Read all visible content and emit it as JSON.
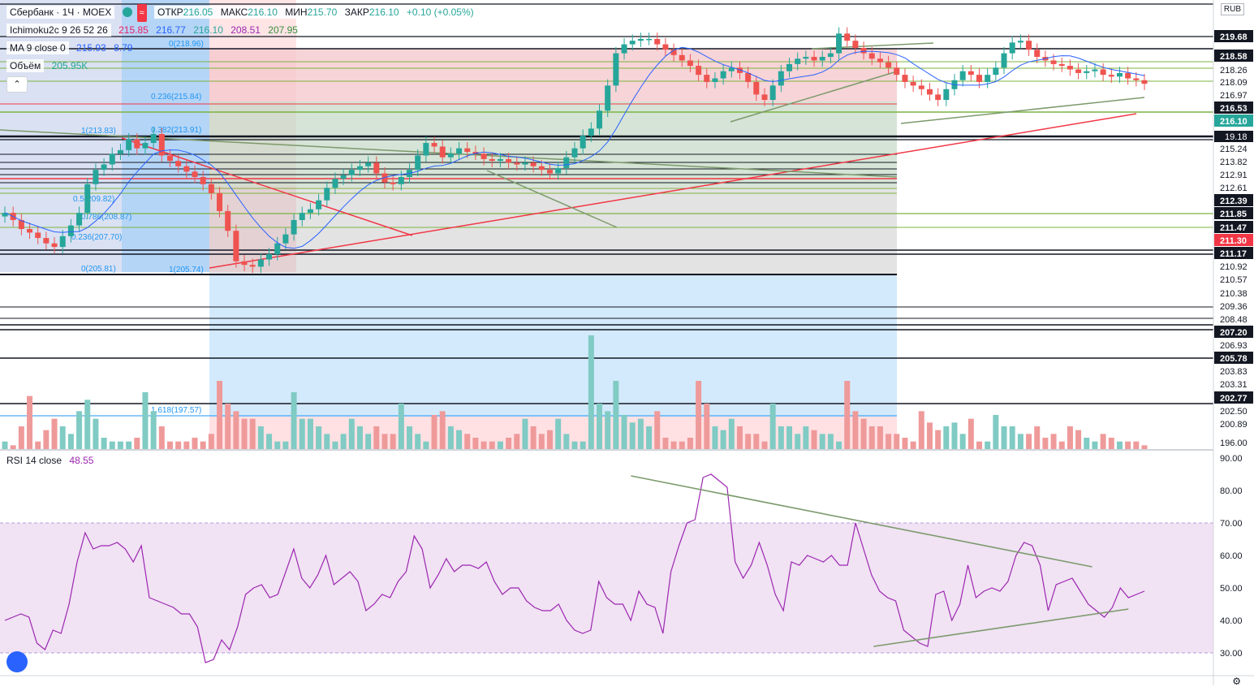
{
  "header": {
    "symbol": "Сбербанк · 1Ч · MOEX",
    "ohlc": {
      "open_label": "ОТКР",
      "open": "216.05",
      "high_label": "МАКС",
      "high": "216.10",
      "low_label": "МИН",
      "low": "215.70",
      "close_label": "ЗАКР",
      "close": "216.10",
      "change": "+0.10 (+0.05%)"
    },
    "wave_icon": "≈"
  },
  "indicators": {
    "ichimoku": {
      "label": "Ichimoku2c 9 26 52 26",
      "values": [
        "215.85",
        "216.77",
        "216.10",
        "208.51",
        "207.95"
      ],
      "colors": [
        "#e91e63",
        "#2962ff",
        "#26a69a",
        "#9c27b0",
        "#388e3c"
      ]
    },
    "ma": {
      "label": "MA 9 close 0",
      "value": "215.93",
      "extra": "8.79"
    },
    "volume": {
      "label": "Объём",
      "value": "205.95K"
    },
    "collapse_icon": "chevron-up-icon",
    "collapse_glyph": "⌃"
  },
  "currency": "RUB",
  "price_axis": {
    "labels": [
      "219.68",
      "218.58",
      "218.26",
      "218.09",
      "216.97",
      "216.53",
      "216.10",
      "215.24",
      "213.82",
      "212.91",
      "212.61",
      "212.39",
      "211.85",
      "211.47",
      "211.30",
      "211.17",
      "210.92",
      "210.57",
      "210.38",
      "209.36",
      "208.48",
      "207.20",
      "206.93",
      "205.78",
      "203.83",
      "203.31",
      "202.77",
      "202.50",
      "200.89",
      "196.00"
    ],
    "highlight": {
      "216.10": "#26a69a",
      "211.30": "#f23645",
      "219.68": "#131722",
      "218.58": "#131722",
      "216.53": "#131722",
      "212.39": "#131722",
      "211.85": "#131722",
      "211.47": "#131722",
      "211.17": "#131722",
      "207.20": "#131722",
      "205.78": "#131722",
      "202.77": "#131722"
    },
    "partial_label": "19.18"
  },
  "fib_labels": [
    {
      "text": "0(218.96)"
    },
    {
      "text": "0.236(215.84)"
    },
    {
      "text": "0.382(213.91)"
    },
    {
      "text": "1(213.83)"
    },
    {
      "text": "0.5(209.82)"
    },
    {
      "text": "0.786(208.87)"
    },
    {
      "text": "0.236(207.70)"
    },
    {
      "text": "0(205.81)"
    },
    {
      "text": "1(205.74)"
    },
    {
      "text": "1.618(197.57)"
    }
  ],
  "rsi": {
    "label": "RSI 14 close",
    "value": "48.55",
    "axis": [
      "90.00",
      "80.00",
      "70.00",
      "60.00",
      "50.00",
      "40.00",
      "30.00"
    ],
    "band": [
      30,
      70
    ],
    "line_color": "#9c27b0",
    "series": [
      40,
      41,
      42,
      41,
      33,
      31,
      37,
      36,
      45,
      58,
      67,
      62,
      63,
      63,
      64,
      62,
      58,
      63,
      47,
      46,
      45,
      44,
      42,
      42,
      38,
      27,
      28,
      34,
      31,
      38,
      48,
      50,
      51,
      47,
      48,
      55,
      62,
      53,
      50,
      54,
      60,
      51,
      53,
      55,
      52,
      43,
      45,
      48,
      47,
      52,
      55,
      66,
      62,
      50,
      54,
      59,
      55,
      57,
      57,
      56,
      58,
      52,
      48,
      50,
      50,
      46,
      44,
      43,
      43,
      45,
      40,
      37,
      36,
      37,
      52,
      47,
      45,
      45,
      40,
      49,
      45,
      44,
      36,
      55,
      63,
      70,
      71,
      84,
      85,
      83,
      81,
      58,
      53,
      57,
      64,
      57,
      48,
      43,
      58,
      57,
      60,
      59,
      58,
      60,
      57,
      57,
      70,
      62,
      54,
      49,
      47,
      46,
      37,
      35,
      33,
      32,
      48,
      49,
      40,
      45,
      57,
      47,
      49,
      50,
      49,
      52,
      60,
      64,
      63,
      57,
      43,
      51,
      52,
      53,
      49,
      45,
      43,
      41,
      44,
      50,
      47,
      48,
      49
    ],
    "trendlines": [
      {
        "from": [
          84.5,
          0.52
        ],
        "to": [
          56.5,
          0.9
        ]
      },
      {
        "from": [
          32,
          0.72
        ],
        "to": [
          43.5,
          0.93
        ]
      }
    ],
    "trendline_color": "#7c9a6c"
  },
  "chart_data": {
    "type": "candlestick",
    "title": "Сбербанк · 1Ч · MOEX",
    "currency": "RUB",
    "ylim": [
      196.0,
      220.5
    ],
    "close_series": [
      208.9,
      208.5,
      208.0,
      207.8,
      207.5,
      207.2,
      207.0,
      207.6,
      208.2,
      208.9,
      210.5,
      211.3,
      211.6,
      212.2,
      212.4,
      213.0,
      212.5,
      212.8,
      213.3,
      212.1,
      211.8,
      211.5,
      211.2,
      210.9,
      210.5,
      210.0,
      209.0,
      207.9,
      206.2,
      206.0,
      205.9,
      206.3,
      206.6,
      207.2,
      207.7,
      208.5,
      208.9,
      209.1,
      209.6,
      210.3,
      210.8,
      211.0,
      211.3,
      211.5,
      211.7,
      211.1,
      210.6,
      210.5,
      210.9,
      211.3,
      212.1,
      212.8,
      212.6,
      212.0,
      212.2,
      212.5,
      212.3,
      212.2,
      211.9,
      211.8,
      211.9,
      211.7,
      211.6,
      211.7,
      211.5,
      211.3,
      211.1,
      211.4,
      212.0,
      212.5,
      213.2,
      213.6,
      214.6,
      216.0,
      217.8,
      218.3,
      218.5,
      218.6,
      218.6,
      218.3,
      218.0,
      217.7,
      217.4,
      217.1,
      216.6,
      216.2,
      216.4,
      216.8,
      217.0,
      216.7,
      216.2,
      215.5,
      215.2,
      216.0,
      216.8,
      217.2,
      217.5,
      217.6,
      217.4,
      217.6,
      217.8,
      218.9,
      218.5,
      218.1,
      217.8,
      217.5,
      217.3,
      217.0,
      216.6,
      216.2,
      216.0,
      215.8,
      215.5,
      215.2,
      215.8,
      216.3,
      216.8,
      216.6,
      216.2,
      216.6,
      217.0,
      217.8,
      218.4,
      218.5,
      218.0,
      217.6,
      217.4,
      217.2,
      217.1,
      216.9,
      216.7,
      216.8,
      216.9,
      216.6,
      216.5,
      216.7,
      216.4,
      216.3,
      216.1
    ],
    "volume_relative": [
      0.1,
      0.05,
      0.3,
      0.7,
      0.1,
      0.25,
      0.4,
      0.3,
      0.2,
      0.5,
      0.65,
      0.4,
      0.15,
      0.1,
      0.1,
      0.1,
      0.15,
      0.75,
      0.5,
      0.3,
      0.1,
      0.1,
      0.1,
      0.15,
      0.1,
      0.2,
      0.9,
      0.6,
      0.5,
      0.4,
      0.4,
      0.3,
      0.2,
      0.1,
      0.1,
      0.75,
      0.4,
      0.4,
      0.3,
      0.2,
      0.1,
      0.2,
      0.4,
      0.3,
      0.2,
      0.3,
      0.2,
      0.2,
      0.6,
      0.3,
      0.2,
      0.1,
      0.45,
      0.5,
      0.3,
      0.25,
      0.2,
      0.15,
      0.1,
      0.1,
      0.1,
      0.15,
      0.2,
      0.4,
      0.3,
      0.2,
      0.25,
      0.4,
      0.2,
      0.1,
      0.1,
      1.5,
      0.6,
      0.5,
      0.9,
      0.45,
      0.35,
      0.4,
      0.3,
      0.5,
      0.15,
      0.1,
      0.1,
      0.15,
      0.9,
      0.6,
      0.3,
      0.25,
      0.4,
      0.3,
      0.2,
      0.2,
      0.1,
      0.6,
      0.3,
      0.3,
      0.2,
      0.3,
      0.25,
      0.2,
      0.2,
      0.1,
      0.9,
      0.5,
      0.4,
      0.3,
      0.3,
      0.2,
      0.2,
      0.15,
      0.1,
      0.5,
      0.35,
      0.25,
      0.3,
      0.35,
      0.2,
      0.4,
      0.1,
      0.1,
      0.45,
      0.3,
      0.3,
      0.2,
      0.2,
      0.3,
      0.15,
      0.2,
      0.1,
      0.3,
      0.25,
      0.15,
      0.1,
      0.2,
      0.15,
      0.1,
      0.1,
      0.1,
      0.05
    ]
  }
}
